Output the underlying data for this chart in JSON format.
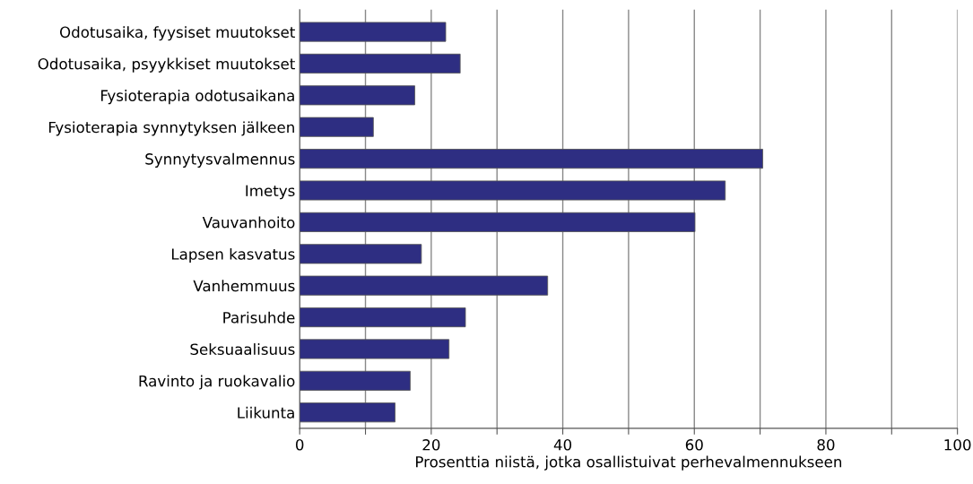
{
  "chart_data": {
    "type": "bar",
    "orientation": "horizontal",
    "xlabel": "Prosenttia niistä, jotka osallistuivat perhevalmennukseen",
    "categories": [
      "Odotusaika, fyysiset muutokset",
      "Odotusaika, psyykkiset muutokset",
      "Fysioterapia odotusaikana",
      "Fysioterapia synnytyksen jälkeen",
      "Synnytysvalmennus",
      "Imetys",
      "Vauvanhoito",
      "Lapsen kasvatus",
      "Vanhemmuus",
      "Parisuhde",
      "Seksuaalisuus",
      "Ravinto ja ruokavalio",
      "Liikunta"
    ],
    "values": [
      22.2,
      24.4,
      17.5,
      11.2,
      70.4,
      64.7,
      60.1,
      18.5,
      37.7,
      25.2,
      22.7,
      16.8,
      14.5
    ],
    "color": "#2e2e82",
    "xlim": [
      0,
      100
    ],
    "xticks": [
      0,
      {
        "value": 10,
        "label": null
      },
      20,
      {
        "value": 30,
        "label": null
      },
      40,
      {
        "value": 50,
        "label": null
      },
      60,
      {
        "value": 70,
        "label": null
      },
      80,
      {
        "value": 90,
        "label": null
      },
      100
    ],
    "grid": "x",
    "legend": false
  }
}
